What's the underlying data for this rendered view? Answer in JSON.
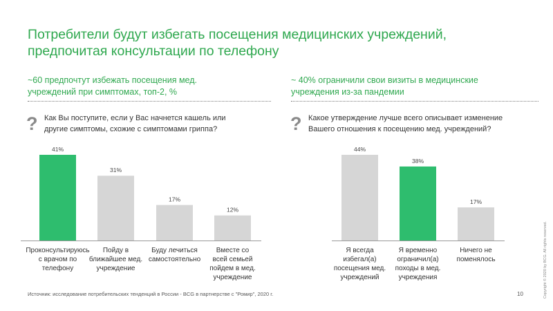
{
  "slide": {
    "title_lines": [
      "Потребители будут избегать посещения медицинских учреждений,",
      "предпочитая консультации по телефону"
    ],
    "source": "Источник: исследование потребительских тенденций в России - BCG в партнерстве с \"Ромир\", 2020 г.",
    "page_number": "10",
    "copyright": "Copyright © 2020 by BCG. All rights reserved."
  },
  "left_panel": {
    "subhead_lines": [
      "~60 предпочтут избежать посещения мед.",
      "учреждений при симптомах, топ-2, %"
    ],
    "question_mark": "?",
    "question_lines": [
      "Как Вы поступите,  если у Вас начнется кашель или",
      "другие симптомы,  схожие с симптомами гриппа?"
    ]
  },
  "right_panel": {
    "subhead_lines": [
      "~ 40% ограничили свои визиты в медицинские",
      "учреждения из-за пандемии"
    ],
    "question_mark": "?",
    "question_lines": [
      "Какое утверждение лучше всего описывает изменение",
      "Вашего отношения  к посещению мед. учреждений?"
    ]
  },
  "colors": {
    "accent": "#2ebd6e",
    "bar_grey": "#d6d6d6",
    "title_green": "#2fa84f"
  },
  "chart_data": [
    {
      "type": "bar",
      "title": "",
      "xlabel": "",
      "ylabel": "",
      "ylim": [
        0,
        41
      ],
      "categories": [
        [
          "Проконсультируюсь",
          "с врачом по",
          "телефону"
        ],
        [
          "Пойду в",
          "ближайшее мед.",
          "учреждение"
        ],
        [
          "Буду лечиться",
          "самостоятельно"
        ],
        [
          "Вместе со",
          "всей семьей",
          "пойдем в мед.",
          "учреждение"
        ]
      ],
      "values": [
        41,
        31,
        17,
        12
      ],
      "labels": [
        "41%",
        "31%",
        "17%",
        "12%"
      ],
      "highlight": [
        true,
        false,
        false,
        false
      ]
    },
    {
      "type": "bar",
      "title": "",
      "xlabel": "",
      "ylabel": "",
      "ylim": [
        0,
        44
      ],
      "categories": [
        [
          "Я всегда",
          "избегал(а)",
          "посещения мед.",
          "учреждений"
        ],
        [
          "Я временно",
          "ограничил(а)",
          "походы в мед.",
          "учреждения"
        ],
        [
          "Ничего не",
          "поменялось"
        ]
      ],
      "values": [
        44,
        38,
        17
      ],
      "labels": [
        "44%",
        "38%",
        "17%"
      ],
      "highlight": [
        false,
        true,
        false
      ]
    }
  ]
}
